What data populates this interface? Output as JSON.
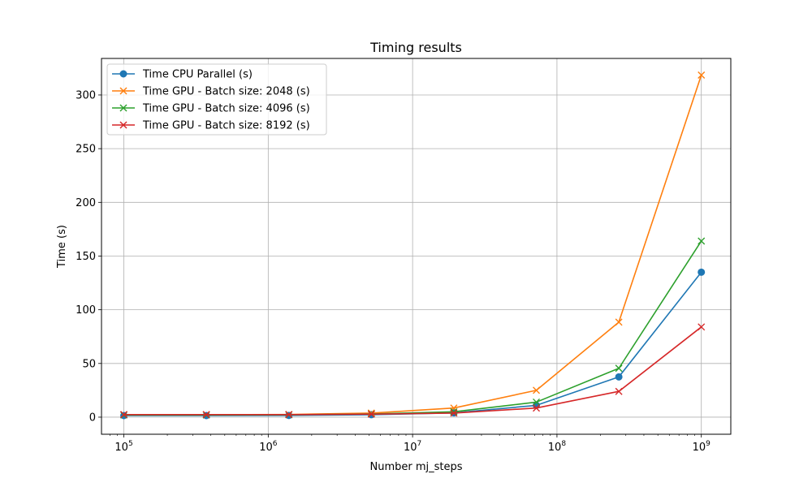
{
  "chart_data": {
    "type": "line",
    "title": "Timing results",
    "xlabel": "Number mj_steps",
    "ylabel": "Time (s)",
    "xscale": "log",
    "xlim": [
      70000,
      1600000000
    ],
    "ylim": [
      -15.9,
      334.0
    ],
    "grid": true,
    "legend_position": "top-left",
    "x": [
      100000,
      372759,
      1389495,
      5179475,
      19306977,
      71968567,
      268269580,
      1000000000
    ],
    "x_ticks": [
      {
        "exp": 5,
        "label_base": "10",
        "label_exp": "5"
      },
      {
        "exp": 6,
        "label_base": "10",
        "label_exp": "6"
      },
      {
        "exp": 7,
        "label_base": "10",
        "label_exp": "7"
      },
      {
        "exp": 8,
        "label_base": "10",
        "label_exp": "8"
      },
      {
        "exp": 9,
        "label_base": "10",
        "label_exp": "9"
      }
    ],
    "y_ticks": [
      0,
      50,
      100,
      150,
      200,
      250,
      300
    ],
    "series": [
      {
        "name": "Time CPU Parallel (s)",
        "color": "#1f77b4",
        "marker": "circle",
        "values": [
          1.5,
          1.5,
          1.6,
          2.3,
          4.0,
          11.0,
          37.5,
          135.0
        ]
      },
      {
        "name": "Time GPU - Batch size: 2048 (s)",
        "color": "#ff7f0e",
        "marker": "x",
        "values": [
          2.3,
          2.3,
          2.5,
          3.8,
          8.5,
          25.0,
          88.5,
          318.5
        ]
      },
      {
        "name": "Time GPU - Batch size: 4096 (s)",
        "color": "#2ca02c",
        "marker": "x",
        "values": [
          2.0,
          2.0,
          2.2,
          3.0,
          5.0,
          14.0,
          45.5,
          164.0
        ]
      },
      {
        "name": "Time GPU - Batch size: 8192 (s)",
        "color": "#d62728",
        "marker": "x",
        "values": [
          2.4,
          2.4,
          2.4,
          2.8,
          3.8,
          8.5,
          24.0,
          84.0
        ]
      }
    ]
  }
}
